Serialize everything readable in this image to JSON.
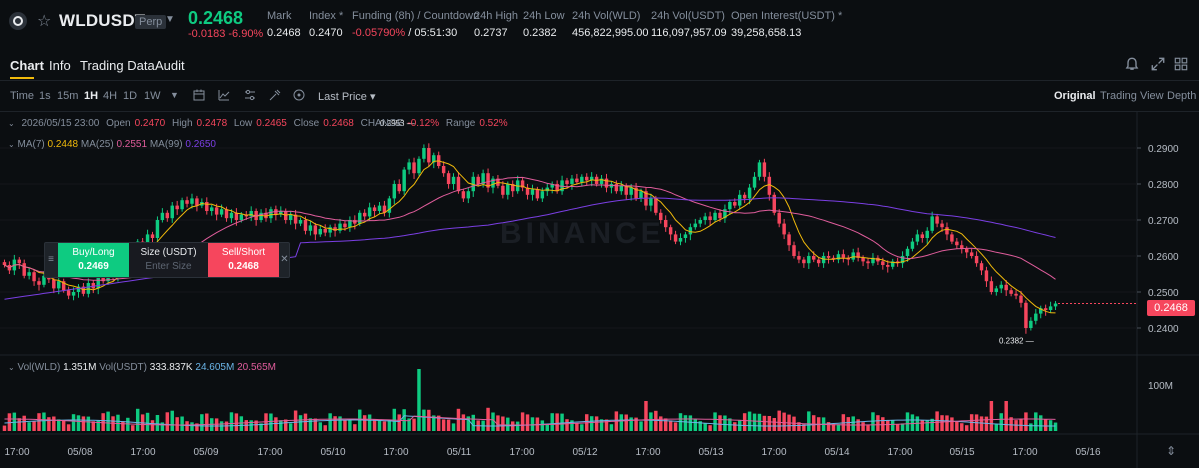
{
  "ticker": {
    "symbol": "WLDUSDT",
    "perp_badge": "Perp",
    "last_price": "0.2468",
    "change": "-0.0183 -6.90%",
    "stats": [
      {
        "label": "Mark",
        "value": "0.2468"
      },
      {
        "label": "Index *",
        "value": "0.2470"
      },
      {
        "label": "Funding (8h) / Countdown",
        "value_red": "-0.05790%",
        "value": " / 05:51:30"
      },
      {
        "label": "24h High",
        "value": "0.2737"
      },
      {
        "label": "24h Low",
        "value": "0.2382"
      },
      {
        "label": "24h Vol(WLD)",
        "value": "456,822,995.00"
      },
      {
        "label": "24h Vol(USDT)",
        "value": "116,097,957.09"
      },
      {
        "label": "Open Interest(USDT) *",
        "value": "39,258,658.13"
      }
    ]
  },
  "tabs": [
    "Chart",
    "Info",
    "Trading Data",
    "Audit"
  ],
  "toolbar": {
    "intervals": [
      "Time",
      "1s",
      "15m",
      "1H",
      "4H",
      "1D",
      "1W"
    ],
    "active_interval": "1H",
    "price_type": "Last Price",
    "views": [
      "Original",
      "Trading View",
      "Depth"
    ],
    "active_view": "Original"
  },
  "ohlc": {
    "date": "2026/05/15 23:00",
    "open_label": "Open",
    "open": "0.2470",
    "high_label": "High",
    "high": "0.2478",
    "low_label": "Low",
    "low": "0.2465",
    "close_label": "Close",
    "close": "0.2468",
    "change_label": "CHANGE",
    "change": "-0.12%",
    "range_label": "Range",
    "range": "0.52%"
  },
  "ma": {
    "ma7_label": "MA(7)",
    "ma7": "0.2448",
    "ma25_label": "MA(25)",
    "ma25": "0.2551",
    "ma99_label": "MA(99)",
    "ma99": "0.2650"
  },
  "volume": {
    "vol_wld_label": "Vol(WLD)",
    "vol_wld": "1.351M",
    "vol_usdt_label": "Vol(USDT)",
    "vol_usdt": "333.837K",
    "ma1": "24.605M",
    "ma2": "20.565M",
    "axis_label": "100M"
  },
  "order": {
    "buy_label": "Buy/Long",
    "buy_price": "0.2469",
    "size_label": "Size (USDT)",
    "size_placeholder": "Enter Size",
    "sell_label": "Sell/Short",
    "sell_price": "0.2468"
  },
  "current_price_tag": "0.2468",
  "watermark": "BINANCE",
  "colors": {
    "up": "#0ecb81",
    "down": "#f6465d",
    "ma7": "#f0b90b",
    "ma25": "#e05d9c",
    "ma99": "#7b3fe4",
    "accent": "#f0b90b"
  },
  "chart_data": {
    "type": "candlestick",
    "y_ticks": [
      "0.2900",
      "0.2800",
      "0.2700",
      "0.2600",
      "0.2500",
      "0.2400"
    ],
    "ylim": [
      0.2355,
      0.2955
    ],
    "x_ticks": [
      "17:00",
      "05/08",
      "17:00",
      "05/09",
      "17:00",
      "05/10",
      "17:00",
      "05/11",
      "17:00",
      "05/12",
      "17:00",
      "05/13",
      "17:00",
      "05/14",
      "17:00",
      "05/15",
      "17:00",
      "05/16"
    ],
    "annotations": [
      {
        "label": "0.2953",
        "value": 0.2953
      },
      {
        "label": "0.2382",
        "value": 0.2382
      }
    ],
    "close": [
      0.2575,
      0.256,
      0.259,
      0.258,
      0.2545,
      0.2555,
      0.253,
      0.252,
      0.2545,
      0.2535,
      0.251,
      0.253,
      0.2505,
      0.249,
      0.25,
      0.2515,
      0.2495,
      0.2525,
      0.251,
      0.254,
      0.253,
      0.256,
      0.2545,
      0.258,
      0.257,
      0.261,
      0.26,
      0.264,
      0.262,
      0.266,
      0.265,
      0.27,
      0.272,
      0.2705,
      0.274,
      0.273,
      0.2755,
      0.2745,
      0.276,
      0.274,
      0.275,
      0.2725,
      0.2735,
      0.2715,
      0.273,
      0.2705,
      0.272,
      0.27,
      0.2715,
      0.271,
      0.2725,
      0.27,
      0.272,
      0.2705,
      0.273,
      0.2715,
      0.2725,
      0.27,
      0.2715,
      0.269,
      0.27,
      0.267,
      0.2685,
      0.266,
      0.2675,
      0.2665,
      0.268,
      0.267,
      0.269,
      0.268,
      0.27,
      0.269,
      0.272,
      0.271,
      0.2735,
      0.2725,
      0.274,
      0.272,
      0.276,
      0.28,
      0.278,
      0.284,
      0.286,
      0.283,
      0.287,
      0.29,
      0.286,
      0.288,
      0.285,
      0.283,
      0.28,
      0.282,
      0.278,
      0.276,
      0.278,
      0.282,
      0.28,
      0.283,
      0.279,
      0.2815,
      0.2795,
      0.277,
      0.28,
      0.278,
      0.281,
      0.279,
      0.277,
      0.2785,
      0.276,
      0.278,
      0.279,
      0.28,
      0.278,
      0.281,
      0.28,
      0.2815,
      0.2805,
      0.282,
      0.281,
      0.282,
      0.28,
      0.2815,
      0.279,
      0.28,
      0.278,
      0.2795,
      0.277,
      0.279,
      0.276,
      0.278,
      0.274,
      0.276,
      0.272,
      0.27,
      0.268,
      0.266,
      0.264,
      0.265,
      0.266,
      0.268,
      0.269,
      0.27,
      0.271,
      0.27,
      0.272,
      0.2705,
      0.273,
      0.275,
      0.274,
      0.277,
      0.276,
      0.279,
      0.282,
      0.286,
      0.282,
      0.277,
      0.272,
      0.269,
      0.266,
      0.263,
      0.26,
      0.259,
      0.258,
      0.26,
      0.259,
      0.258,
      0.26,
      0.2595,
      0.259,
      0.2605,
      0.2595,
      0.259,
      0.261,
      0.2595,
      0.2585,
      0.258,
      0.2595,
      0.2585,
      0.2575,
      0.257,
      0.2585,
      0.258,
      0.26,
      0.262,
      0.264,
      0.266,
      0.265,
      0.267,
      0.271,
      0.269,
      0.268,
      0.266,
      0.264,
      0.263,
      0.262,
      0.261,
      0.26,
      0.258,
      0.256,
      0.253,
      0.25,
      0.251,
      0.252,
      0.2505,
      0.2495,
      0.249,
      0.247,
      0.24,
      0.242,
      0.244,
      0.2455,
      0.245,
      0.246,
      0.2468
    ],
    "ma7_value": 0.2448,
    "ma25_value": 0.2551,
    "ma99_value": 0.265
  }
}
